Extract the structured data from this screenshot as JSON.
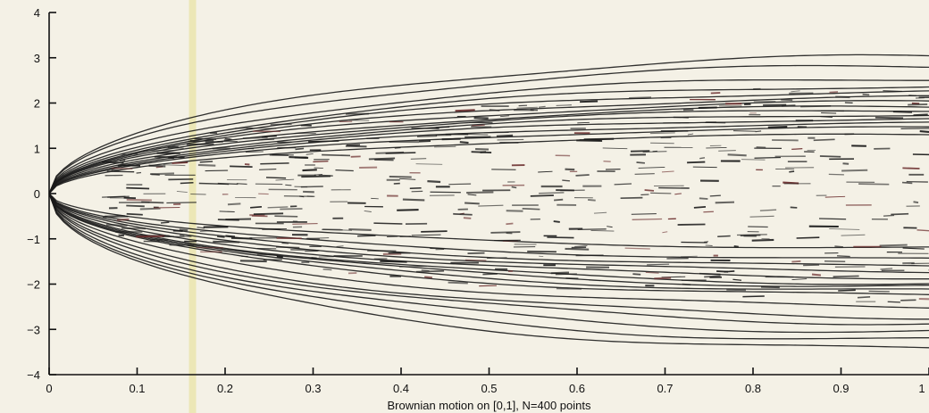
{
  "chart_data": {
    "type": "line",
    "title": "",
    "xlabel": "Brownian motion on [0,1], N=400 points",
    "ylabel": "",
    "xlim": [
      0,
      1
    ],
    "ylim": [
      -4,
      4
    ],
    "x_ticks": [
      0,
      0.1,
      0.2,
      0.3,
      0.4,
      0.5,
      0.6,
      0.7,
      0.8,
      0.9,
      1
    ],
    "x_tick_labels": [
      "0",
      "0.1",
      "0.2",
      "0.3",
      "0.4",
      "0.5",
      "0.6",
      "0.7",
      "0.8",
      "0.9",
      "1"
    ],
    "y_ticks": [
      -4,
      -3,
      -2,
      -1,
      0,
      1,
      2,
      3,
      4
    ],
    "y_tick_labels": [
      "−4",
      "−3",
      "−2",
      "−1",
      "0",
      "1",
      "2",
      "3",
      "4"
    ],
    "grid": false,
    "legend": "none",
    "line_color": "#1a1a1a",
    "background": "#f4f1e6",
    "highlight_band_x": 0.163,
    "highlight_band_color": "#e9e3a6",
    "solid_curve_amplitudes": [
      3.02,
      2.82,
      2.55,
      2.38,
      2.25,
      2.12,
      2.02,
      1.92,
      1.85,
      1.75,
      1.65,
      1.55,
      1.45,
      1.3,
      -1.2,
      -1.45,
      -1.6,
      -1.72,
      -1.85,
      -1.98,
      -2.05,
      -2.15,
      -2.25,
      -2.5,
      -2.72,
      -2.85,
      -3.05,
      -3.25,
      -3.45
    ],
    "n_points": 400
  }
}
